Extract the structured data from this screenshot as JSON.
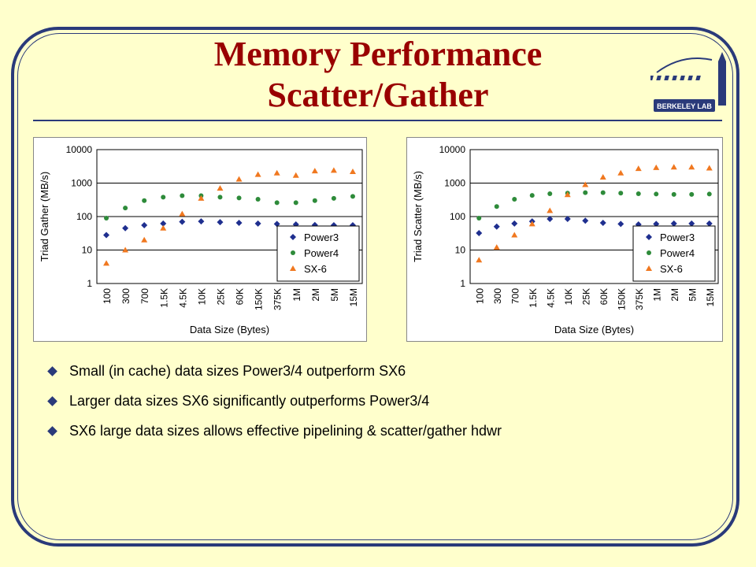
{
  "slide": {
    "title_line1": "Memory Performance",
    "title_line2": "Scatter/Gather",
    "logo_text": "BERKELEY LAB",
    "bullets": [
      "Small (in cache)  data sizes Power3/4 outperform SX6",
      "Larger data sizes SX6 significantly outperforms Power3/4",
      "SX6 large data sizes allows effective pipelining & scatter/gather hdwr"
    ]
  },
  "colors": {
    "title": "#990000",
    "frame": "#2a3a7a",
    "background": "#ffffcc",
    "power3": "#1f2f8f",
    "power4": "#2e8b3a",
    "sx6": "#f07820"
  },
  "chart_data": [
    {
      "type": "scatter",
      "ylabel": "Triad Gather (MB/s)",
      "xlabel": "Data Size (Bytes)",
      "y_scale": "log",
      "ylim": [
        1,
        10000
      ],
      "y_ticks": [
        "1",
        "10",
        "100",
        "1000",
        "10000"
      ],
      "x_ticks": [
        "100",
        "300",
        "700",
        "1.5K",
        "4.5K",
        "10K",
        "25K",
        "60K",
        "150K",
        "375K",
        "1M",
        "2M",
        "5M",
        "15M"
      ],
      "legend_position": "bottom-right",
      "grid": "horizontal",
      "series": [
        {
          "name": "Power3",
          "marker": "diamond",
          "x": [
            0,
            1,
            2,
            3,
            4,
            5,
            6,
            7,
            8,
            9,
            10,
            11,
            12,
            13
          ],
          "y": [
            28,
            45,
            55,
            62,
            70,
            72,
            68,
            65,
            62,
            60,
            58,
            56,
            55,
            55
          ]
        },
        {
          "name": "Power4",
          "marker": "circle",
          "x": [
            0,
            1,
            2,
            3,
            4,
            5,
            6,
            7,
            8,
            9,
            10,
            11,
            12,
            13
          ],
          "y": [
            90,
            180,
            300,
            380,
            420,
            420,
            380,
            360,
            330,
            260,
            260,
            300,
            350,
            400
          ]
        },
        {
          "name": "SX-6",
          "marker": "triangle",
          "x": [
            0,
            1,
            2,
            3,
            4,
            5,
            6,
            7,
            8,
            9,
            10,
            11,
            12,
            13
          ],
          "y": [
            4,
            10,
            20,
            45,
            120,
            350,
            700,
            1300,
            1800,
            2000,
            1700,
            2300,
            2400,
            2200
          ]
        }
      ]
    },
    {
      "type": "scatter",
      "ylabel": "Triad Scatter (MB/s)",
      "xlabel": "Data Size (Bytes)",
      "y_scale": "log",
      "ylim": [
        1,
        10000
      ],
      "y_ticks": [
        "1",
        "10",
        "100",
        "1000",
        "10000"
      ],
      "x_ticks": [
        "100",
        "300",
        "700",
        "1.5K",
        "4.5K",
        "10K",
        "25K",
        "60K",
        "150K",
        "375K",
        "1M",
        "2M",
        "5M",
        "15M"
      ],
      "legend_position": "bottom-right",
      "grid": "horizontal",
      "series": [
        {
          "name": "Power3",
          "marker": "diamond",
          "x": [
            0,
            1,
            2,
            3,
            4,
            5,
            6,
            7,
            8,
            9,
            10,
            11,
            12,
            13
          ],
          "y": [
            32,
            50,
            62,
            72,
            85,
            85,
            75,
            65,
            60,
            58,
            60,
            62,
            62,
            62
          ]
        },
        {
          "name": "Power4",
          "marker": "circle",
          "x": [
            0,
            1,
            2,
            3,
            4,
            5,
            6,
            7,
            8,
            9,
            10,
            11,
            12,
            13
          ],
          "y": [
            90,
            200,
            330,
            430,
            480,
            500,
            520,
            520,
            500,
            480,
            470,
            460,
            460,
            470
          ]
        },
        {
          "name": "SX-6",
          "marker": "triangle",
          "x": [
            0,
            1,
            2,
            3,
            4,
            5,
            6,
            7,
            8,
            9,
            10,
            11,
            12,
            13
          ],
          "y": [
            5,
            12,
            28,
            60,
            150,
            450,
            900,
            1500,
            2000,
            2700,
            2900,
            3000,
            3000,
            2800
          ]
        }
      ]
    }
  ]
}
